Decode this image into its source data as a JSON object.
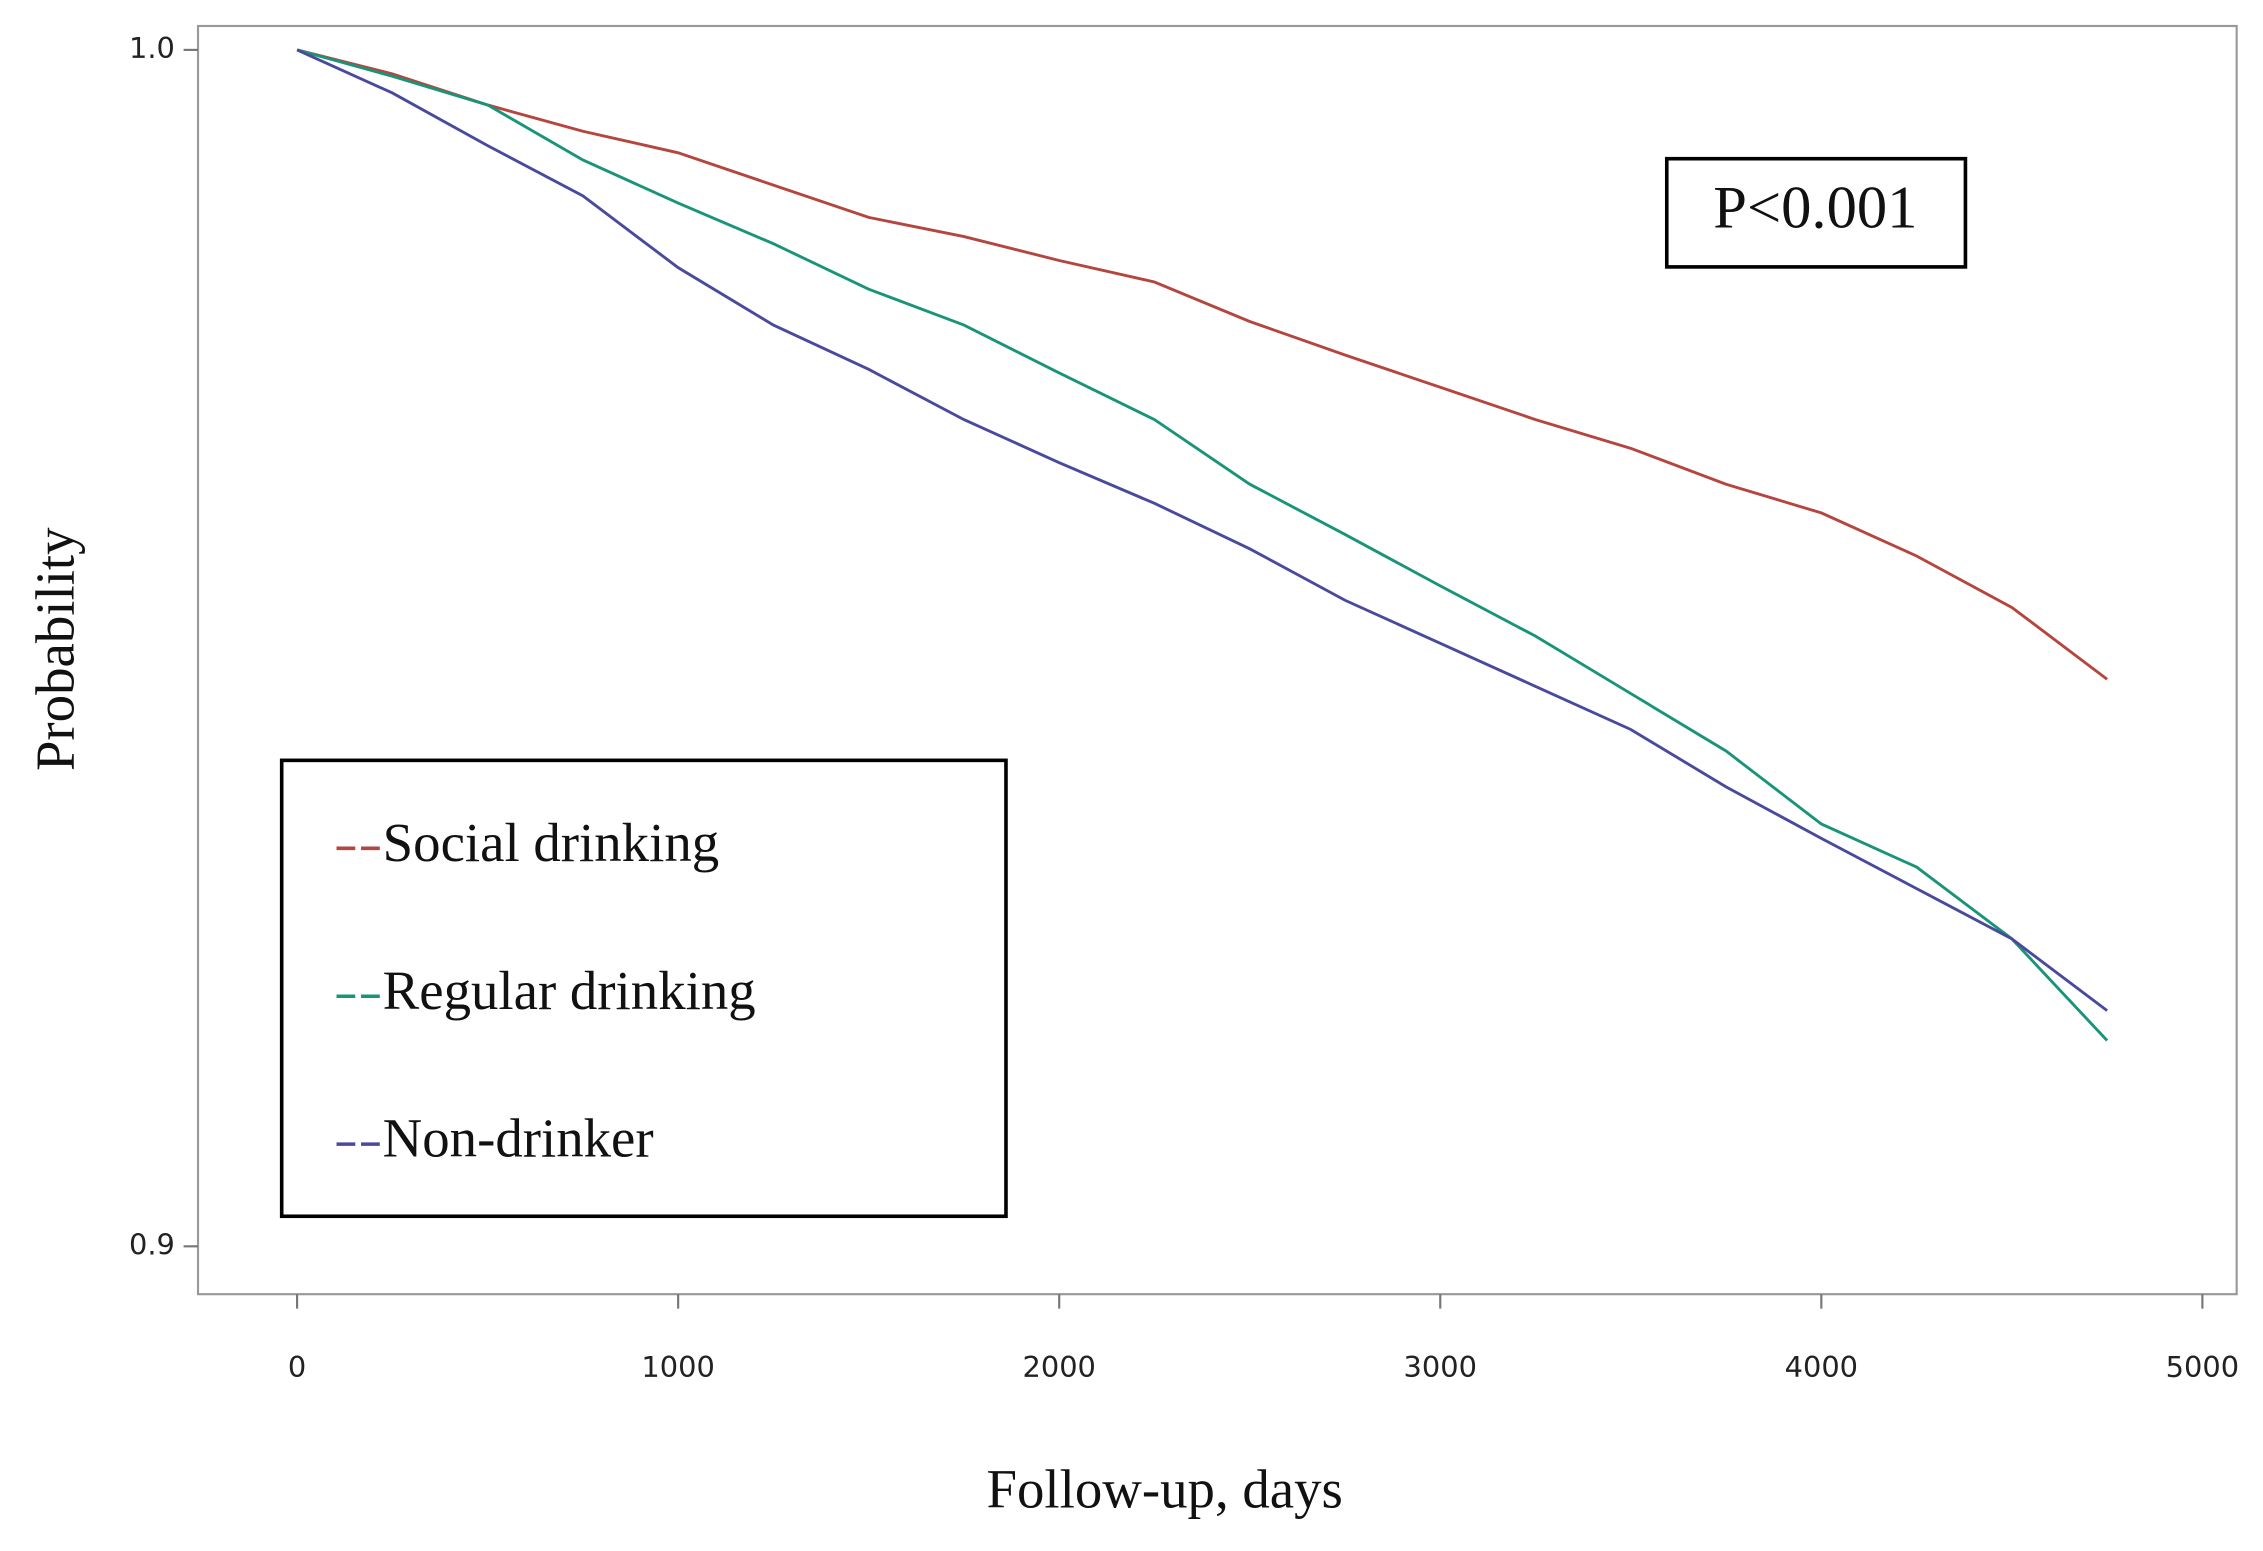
{
  "chart_data": {
    "type": "line",
    "xlabel": "Follow-up, days",
    "ylabel": "Probability",
    "annotation": "P<0.001",
    "x": [
      0,
      250,
      500,
      750,
      1000,
      1250,
      1500,
      1750,
      2000,
      2250,
      2500,
      2750,
      3000,
      3250,
      3500,
      3750,
      4000,
      4250,
      4500,
      4750
    ],
    "series": [
      {
        "name": "Social drinking",
        "color": "#b5463f",
        "values": [
          1.0,
          0.998,
          0.9954,
          0.9932,
          0.9914,
          0.9887,
          0.986,
          0.9844,
          0.9824,
          0.9806,
          0.9773,
          0.9745,
          0.9718,
          0.9691,
          0.9667,
          0.9637,
          0.9613,
          0.9577,
          0.9534,
          0.9474
        ]
      },
      {
        "name": "Regular drinking",
        "color": "#1a9478",
        "values": [
          1.0,
          0.9978,
          0.9954,
          0.9908,
          0.9872,
          0.9838,
          0.98,
          0.977,
          0.973,
          0.9691,
          0.9637,
          0.9595,
          0.9552,
          0.951,
          0.9462,
          0.9414,
          0.9353,
          0.9317,
          0.9257,
          0.9172
        ]
      },
      {
        "name": "Non-drinker",
        "color": "#4a4a9c",
        "values": [
          1.0,
          0.9964,
          0.992,
          0.9878,
          0.9818,
          0.977,
          0.9733,
          0.9691,
          0.9655,
          0.9621,
          0.9583,
          0.954,
          0.9504,
          0.9468,
          0.9432,
          0.9384,
          0.9341,
          0.9299,
          0.9257,
          0.9197
        ]
      }
    ],
    "xlim": [
      -260,
      5090
    ],
    "ylim": [
      0.896,
      1.002
    ],
    "xticks": [
      0,
      1000,
      2000,
      3000,
      4000,
      5000
    ],
    "yticks": [
      0.9,
      {
        "value": 1,
        "label": "1.0"
      }
    ],
    "grid": false,
    "legend": "lower left"
  }
}
